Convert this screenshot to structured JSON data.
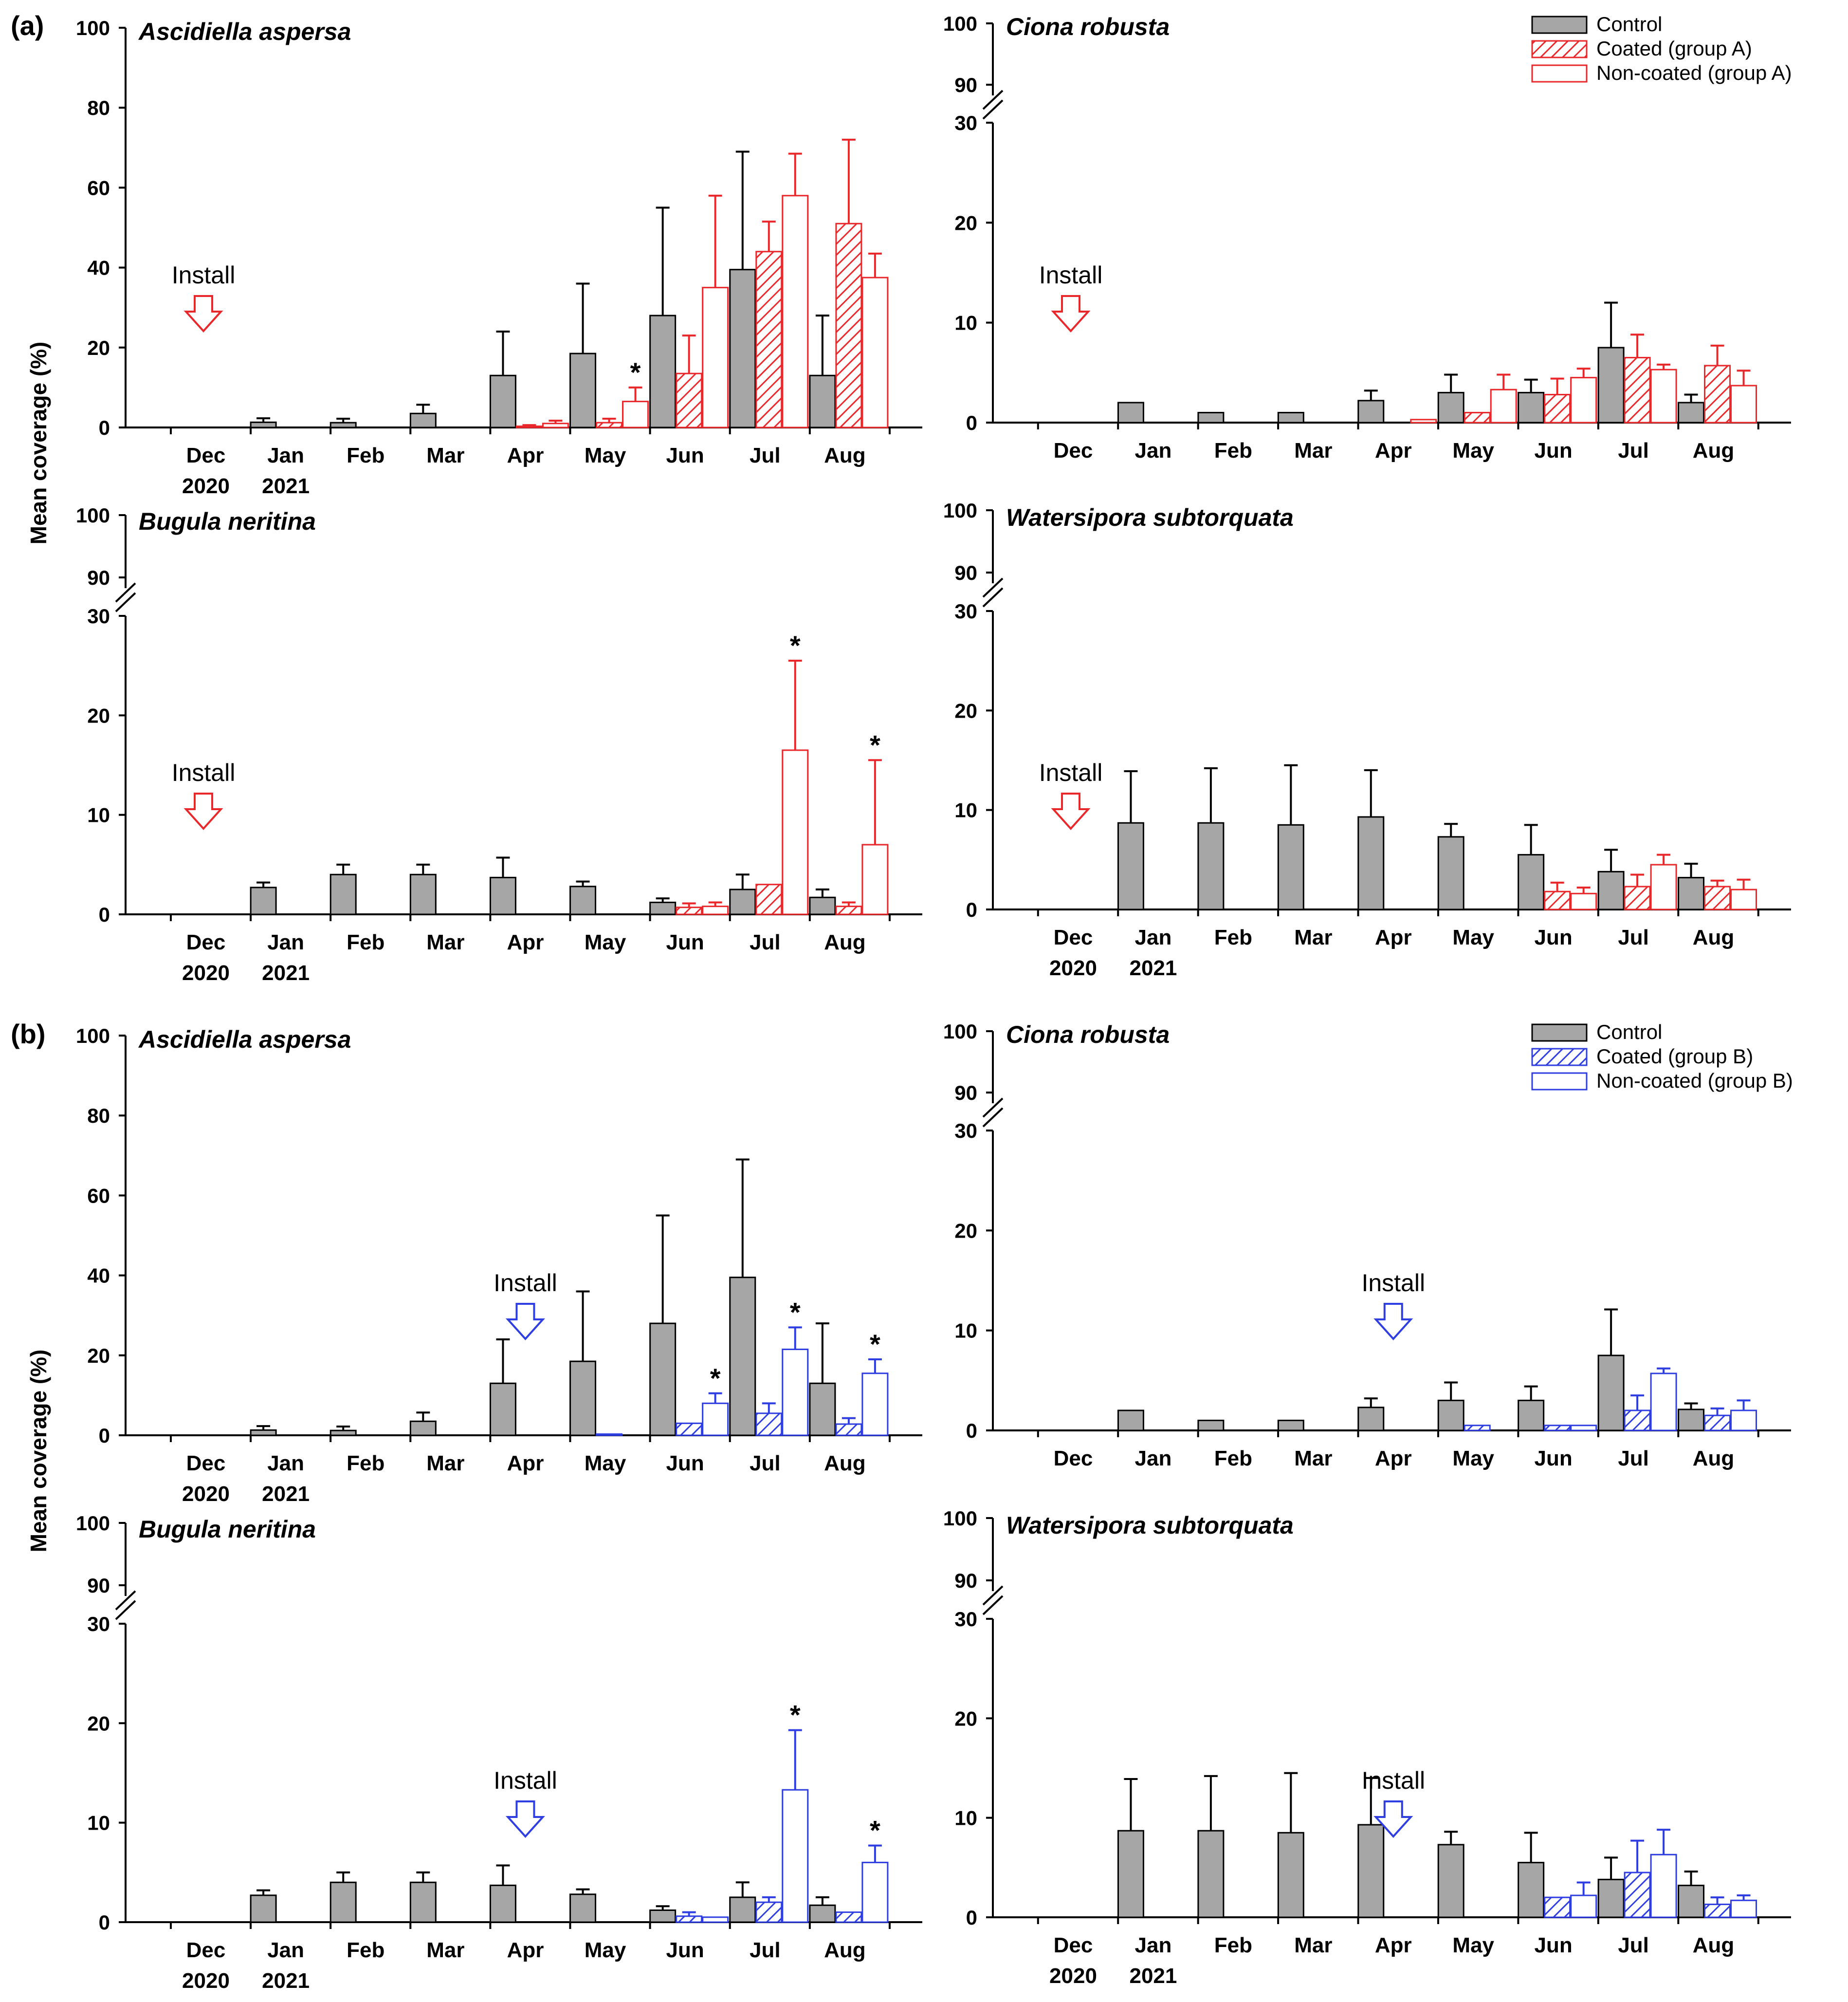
{
  "figure": {
    "panel_labels": [
      "(a)",
      "(b)"
    ],
    "ylabel": "Mean coverage (%)",
    "install_label": "Install",
    "months": [
      "Dec",
      "Jan",
      "Feb",
      "Mar",
      "Apr",
      "May",
      "Jun",
      "Jul",
      "Aug"
    ],
    "years": [
      "2020",
      "2021"
    ],
    "legend_a": [
      "Control",
      "Coated (group A)",
      "Non-coated (group A)"
    ],
    "legend_b": [
      "Control",
      "Coated (group B)",
      "Non-coated (group B)"
    ],
    "star": "*"
  },
  "colors": {
    "control": "#a6a6a6",
    "group_a": "#e8282b",
    "group_b": "#2f3ee0"
  },
  "chart_data": [
    {
      "panel": "(a)",
      "group": "A",
      "type": "bar",
      "title": "Ascidiella aspersa",
      "ylim": [
        0,
        100
      ],
      "yticks": [
        0,
        20,
        40,
        60,
        80,
        100
      ],
      "categories": [
        "Dec",
        "Jan",
        "Feb",
        "Mar",
        "Apr",
        "May",
        "Jun",
        "Jul",
        "Aug"
      ],
      "install": "Dec",
      "series": [
        {
          "name": "Control",
          "values": [
            null,
            1.3,
            1.2,
            3.5,
            13,
            18.5,
            28,
            39.5,
            13
          ],
          "errors": [
            null,
            1,
            1,
            2.2,
            11,
            17.5,
            27,
            29.5,
            15
          ]
        },
        {
          "name": "Coated (group A)",
          "values": [
            null,
            null,
            null,
            null,
            0.3,
            1.2,
            13.5,
            44,
            51
          ],
          "errors": [
            null,
            null,
            null,
            null,
            0.3,
            1,
            9.5,
            7.5,
            21
          ]
        },
        {
          "name": "Non-coated (group A)",
          "values": [
            null,
            null,
            null,
            null,
            1,
            6.5,
            35,
            58,
            37.5
          ],
          "errors": [
            null,
            null,
            null,
            null,
            0.7,
            3.5,
            23,
            10.5,
            6
          ]
        }
      ],
      "significant": [
        {
          "month": "May",
          "series": 2
        }
      ]
    },
    {
      "panel": "(a)",
      "group": "A",
      "type": "bar",
      "title": "Ciona robusta",
      "ylim": [
        0,
        30
      ],
      "broken_top": [
        90,
        100
      ],
      "yticks": [
        0,
        10,
        20,
        30
      ],
      "top_ticks": [
        90,
        100
      ],
      "categories": [
        "Dec",
        "Jan",
        "Feb",
        "Mar",
        "Apr",
        "May",
        "Jun",
        "Jul",
        "Aug"
      ],
      "install": "Dec",
      "series": [
        {
          "name": "Control",
          "values": [
            null,
            2,
            1,
            1,
            2.2,
            3,
            3,
            7.5,
            2
          ],
          "errors": [
            null,
            0,
            0,
            0,
            1,
            1.8,
            1.3,
            4.5,
            0.8
          ]
        },
        {
          "name": "Coated (group A)",
          "values": [
            null,
            null,
            null,
            null,
            null,
            1,
            2.8,
            6.5,
            5.7
          ],
          "errors": [
            null,
            null,
            null,
            null,
            null,
            0,
            1.6,
            2.3,
            2
          ]
        },
        {
          "name": "Non-coated (group A)",
          "values": [
            null,
            null,
            null,
            null,
            0.3,
            3.3,
            4.5,
            5.3,
            3.7
          ],
          "errors": [
            null,
            null,
            null,
            null,
            0,
            1.5,
            0.9,
            0.5,
            1.5
          ]
        }
      ],
      "significant": []
    },
    {
      "panel": "(a)",
      "group": "A",
      "type": "bar",
      "title": "Bugula neritina",
      "ylim": [
        0,
        30
      ],
      "broken_top": [
        90,
        100
      ],
      "yticks": [
        0,
        10,
        20,
        30
      ],
      "top_ticks": [
        90,
        100
      ],
      "categories": [
        "Dec",
        "Jan",
        "Feb",
        "Mar",
        "Apr",
        "May",
        "Jun",
        "Jul",
        "Aug"
      ],
      "install": "Dec",
      "series": [
        {
          "name": "Control",
          "values": [
            null,
            2.7,
            4,
            4,
            3.7,
            2.8,
            1.2,
            2.5,
            1.7
          ],
          "errors": [
            null,
            0.5,
            1,
            1,
            2,
            0.5,
            0.4,
            1.5,
            0.8
          ]
        },
        {
          "name": "Coated (group A)",
          "values": [
            null,
            null,
            null,
            null,
            null,
            null,
            0.7,
            3,
            0.8
          ],
          "errors": [
            null,
            null,
            null,
            null,
            null,
            null,
            0.4,
            0,
            0.4
          ]
        },
        {
          "name": "Non-coated (group A)",
          "values": [
            null,
            null,
            null,
            null,
            null,
            null,
            0.8,
            16.5,
            7
          ],
          "errors": [
            null,
            null,
            null,
            null,
            null,
            null,
            0.4,
            9,
            8.5
          ]
        }
      ],
      "significant": [
        {
          "month": "Jul",
          "series": 2
        },
        {
          "month": "Aug",
          "series": 2
        }
      ]
    },
    {
      "panel": "(a)",
      "group": "A",
      "type": "bar",
      "title": "Watersipora subtorquata",
      "ylim": [
        0,
        30
      ],
      "broken_top": [
        90,
        100
      ],
      "yticks": [
        0,
        10,
        20,
        30
      ],
      "top_ticks": [
        90,
        100
      ],
      "categories": [
        "Dec",
        "Jan",
        "Feb",
        "Mar",
        "Apr",
        "May",
        "Jun",
        "Jul",
        "Aug"
      ],
      "install": "Dec",
      "series": [
        {
          "name": "Control",
          "values": [
            null,
            8.7,
            8.7,
            8.5,
            9.3,
            7.3,
            5.5,
            3.8,
            3.2
          ],
          "errors": [
            null,
            5.2,
            5.5,
            6,
            4.7,
            1.3,
            3,
            2.2,
            1.4
          ]
        },
        {
          "name": "Coated (group A)",
          "values": [
            null,
            null,
            null,
            null,
            null,
            null,
            1.8,
            2.3,
            2.3
          ],
          "errors": [
            null,
            null,
            null,
            null,
            null,
            null,
            0.9,
            1.2,
            0.6
          ]
        },
        {
          "name": "Non-coated (group A)",
          "values": [
            null,
            null,
            null,
            null,
            null,
            null,
            1.6,
            4.5,
            2
          ],
          "errors": [
            null,
            null,
            null,
            null,
            null,
            null,
            0.6,
            1,
            1
          ]
        }
      ],
      "significant": []
    },
    {
      "panel": "(b)",
      "group": "B",
      "type": "bar",
      "title": "Ascidiella aspersa",
      "ylim": [
        0,
        100
      ],
      "yticks": [
        0,
        20,
        40,
        60,
        80,
        100
      ],
      "categories": [
        "Dec",
        "Jan",
        "Feb",
        "Mar",
        "Apr",
        "May",
        "Jun",
        "Jul",
        "Aug"
      ],
      "install": "Apr",
      "series": [
        {
          "name": "Control",
          "values": [
            null,
            1.3,
            1.2,
            3.5,
            13,
            18.5,
            28,
            39.5,
            13
          ],
          "errors": [
            null,
            1,
            1,
            2.2,
            11,
            17.5,
            27,
            29.5,
            15
          ]
        },
        {
          "name": "Coated (group B)",
          "values": [
            null,
            null,
            null,
            null,
            null,
            0.3,
            3,
            5.5,
            2.8
          ],
          "errors": [
            null,
            null,
            null,
            null,
            null,
            0,
            0,
            2.5,
            1.5
          ]
        },
        {
          "name": "Non-coated (group B)",
          "values": [
            null,
            null,
            null,
            null,
            null,
            null,
            8,
            21.5,
            15.5
          ],
          "errors": [
            null,
            null,
            null,
            null,
            null,
            null,
            2.5,
            5.5,
            3.5
          ]
        }
      ],
      "significant": [
        {
          "month": "Jun",
          "series": 2
        },
        {
          "month": "Jul",
          "series": 2
        },
        {
          "month": "Aug",
          "series": 2
        }
      ]
    },
    {
      "panel": "(b)",
      "group": "B",
      "type": "bar",
      "title": "Ciona robusta",
      "ylim": [
        0,
        30
      ],
      "broken_top": [
        90,
        100
      ],
      "yticks": [
        0,
        10,
        20,
        30
      ],
      "top_ticks": [
        90,
        100
      ],
      "categories": [
        "Dec",
        "Jan",
        "Feb",
        "Mar",
        "Apr",
        "May",
        "Jun",
        "Jul",
        "Aug"
      ],
      "install": "Apr",
      "series": [
        {
          "name": "Control",
          "values": [
            null,
            2,
            1,
            1,
            2.3,
            3,
            3,
            7.5,
            2.1
          ],
          "errors": [
            null,
            0,
            0,
            0,
            0.9,
            1.8,
            1.4,
            4.6,
            0.6
          ]
        },
        {
          "name": "Coated (group B)",
          "values": [
            null,
            null,
            null,
            null,
            null,
            0.5,
            0.5,
            2,
            1.5
          ],
          "errors": [
            null,
            null,
            null,
            null,
            null,
            0,
            0,
            1.5,
            0.7
          ]
        },
        {
          "name": "Non-coated (group B)",
          "values": [
            null,
            null,
            null,
            null,
            null,
            null,
            0.5,
            5.7,
            2
          ],
          "errors": [
            null,
            null,
            null,
            null,
            null,
            null,
            0,
            0.5,
            1
          ]
        }
      ],
      "significant": []
    },
    {
      "panel": "(b)",
      "group": "B",
      "type": "bar",
      "title": "Bugula neritina",
      "ylim": [
        0,
        30
      ],
      "broken_top": [
        90,
        100
      ],
      "yticks": [
        0,
        10,
        20,
        30
      ],
      "top_ticks": [
        90,
        100
      ],
      "categories": [
        "Dec",
        "Jan",
        "Feb",
        "Mar",
        "Apr",
        "May",
        "Jun",
        "Jul",
        "Aug"
      ],
      "install": "Apr",
      "series": [
        {
          "name": "Control",
          "values": [
            null,
            2.7,
            4,
            4,
            3.7,
            2.8,
            1.2,
            2.5,
            1.7
          ],
          "errors": [
            null,
            0.5,
            1,
            1,
            2,
            0.5,
            0.4,
            1.5,
            0.8
          ]
        },
        {
          "name": "Coated (group B)",
          "values": [
            null,
            null,
            null,
            null,
            null,
            null,
            0.6,
            2,
            1
          ],
          "errors": [
            null,
            null,
            null,
            null,
            null,
            null,
            0.4,
            0.5,
            0
          ]
        },
        {
          "name": "Non-coated (group B)",
          "values": [
            null,
            null,
            null,
            null,
            null,
            null,
            0.5,
            13.3,
            6
          ],
          "errors": [
            null,
            null,
            null,
            null,
            null,
            null,
            0,
            6,
            1.7
          ]
        }
      ],
      "significant": [
        {
          "month": "Jul",
          "series": 2
        },
        {
          "month": "Aug",
          "series": 2
        }
      ]
    },
    {
      "panel": "(b)",
      "group": "B",
      "type": "bar",
      "title": "Watersipora subtorquata",
      "ylim": [
        0,
        30
      ],
      "broken_top": [
        90,
        100
      ],
      "yticks": [
        0,
        10,
        20,
        30
      ],
      "top_ticks": [
        90,
        100
      ],
      "categories": [
        "Dec",
        "Jan",
        "Feb",
        "Mar",
        "Apr",
        "May",
        "Jun",
        "Jul",
        "Aug"
      ],
      "install": "Apr",
      "series": [
        {
          "name": "Control",
          "values": [
            null,
            8.7,
            8.7,
            8.5,
            9.3,
            7.3,
            5.5,
            3.8,
            3.2
          ],
          "errors": [
            null,
            5.2,
            5.5,
            6,
            4.7,
            1.3,
            3,
            2.2,
            1.4
          ]
        },
        {
          "name": "Coated (group B)",
          "values": [
            null,
            null,
            null,
            null,
            null,
            null,
            2,
            4.5,
            1.3
          ],
          "errors": [
            null,
            null,
            null,
            null,
            null,
            null,
            0,
            3.2,
            0.7
          ]
        },
        {
          "name": "Non-coated (group B)",
          "values": [
            null,
            null,
            null,
            null,
            null,
            null,
            2.2,
            6.3,
            1.7
          ],
          "errors": [
            null,
            null,
            null,
            null,
            null,
            null,
            1.3,
            2.5,
            0.5
          ]
        }
      ],
      "significant": []
    }
  ]
}
